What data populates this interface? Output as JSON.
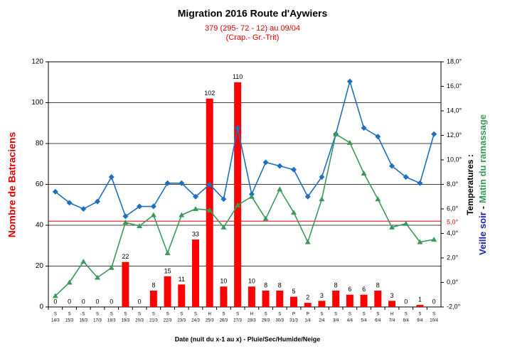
{
  "chart_data": {
    "type": "bar_line",
    "title": "Migration  2016 Route d'Aywiers",
    "subtitle": [
      "379 (295- 72 - 12) au 09/04",
      "(Crap.- Gr.-Trit)"
    ],
    "x_label": "Date (nuit du x-1 au x) - Pluie/Sec/Humide/Neige",
    "y_label": "Nombre de Batraciens",
    "y2_label": "Temperatures :",
    "y2_label_joiner": "-",
    "categories": [
      "14/3",
      "15/3",
      "16/3",
      "17/3",
      "18/3",
      "19/3",
      "20/3",
      "21/3",
      "22/3",
      "23/3",
      "24/3",
      "25/3",
      "26/3",
      "27/3",
      "28/3",
      "29/3",
      "30/3",
      "31/3",
      "1/4",
      "2/4",
      "3/4",
      "4/4",
      "5/4",
      "6/4",
      "7/4",
      "8/4",
      "9/4",
      "10/4"
    ],
    "weather": [
      "S",
      "S",
      "S",
      "S",
      "S",
      "S",
      "S",
      "S",
      "S",
      "S",
      "S",
      "H",
      "S",
      "S",
      "H",
      "S",
      "S",
      "P",
      "P",
      "S",
      "S",
      "S",
      "S",
      "S",
      "H",
      "S",
      "S",
      "S"
    ],
    "ylim": [
      0,
      120
    ],
    "yticks": [
      0,
      20,
      40,
      60,
      80,
      100,
      120
    ],
    "y2lim": [
      -2,
      18
    ],
    "y2ticks": [
      {
        "value": -2,
        "label": "-2,0°"
      },
      {
        "value": 0,
        "label": "0,0°"
      },
      {
        "value": 2,
        "label": "2,0°"
      },
      {
        "value": 4,
        "label": "4,0°"
      },
      {
        "value": 6,
        "label": "6,0°"
      },
      {
        "value": 8,
        "label": "8,0°"
      },
      {
        "value": 10,
        "label": "10,0°"
      },
      {
        "value": 12,
        "label": "12,0°"
      },
      {
        "value": 14,
        "label": "14,0°"
      },
      {
        "value": 16,
        "label": "16,0°"
      },
      {
        "value": 18,
        "label": "18,0°"
      }
    ],
    "y2_reference": {
      "value": 5,
      "label": "5,0°",
      "color": "#e00000"
    },
    "grid": true,
    "series": [
      {
        "name": "Nombre de Batraciens",
        "type": "bar",
        "color": "#ff0000",
        "values": [
          0,
          0,
          0,
          0,
          0,
          22,
          0,
          8,
          15,
          11,
          33,
          102,
          10,
          110,
          10,
          8,
          8,
          5,
          2,
          3,
          8,
          6,
          6,
          8,
          3,
          0,
          1,
          0
        ]
      },
      {
        "name": "Veille soir",
        "type": "line",
        "axis": "y2",
        "color": "#1f6fbf",
        "marker": "diamond",
        "values": [
          7.4,
          6.5,
          6.0,
          6.6,
          8.6,
          5.4,
          6.2,
          6.2,
          8.1,
          8.1,
          7.0,
          8.0,
          6.8,
          12.6,
          7.2,
          9.8,
          9.5,
          9.2,
          7.0,
          8.6,
          12.1,
          16.4,
          12.6,
          11.9,
          9.5,
          8.6,
          8.1,
          12.1
        ]
      },
      {
        "name": "Matin du ramassage",
        "type": "line",
        "axis": "y2",
        "color": "#3a9a5c",
        "marker": "triangle",
        "values": [
          -1.1,
          0.0,
          1.7,
          0.4,
          1.2,
          4.9,
          4.6,
          5.5,
          2.4,
          5.5,
          6.0,
          5.9,
          4.5,
          6.3,
          7.0,
          5.2,
          7.6,
          5.7,
          3.3,
          6.8,
          12.1,
          11.4,
          8.9,
          6.8,
          4.5,
          4.8,
          3.3,
          3.5
        ]
      }
    ]
  }
}
